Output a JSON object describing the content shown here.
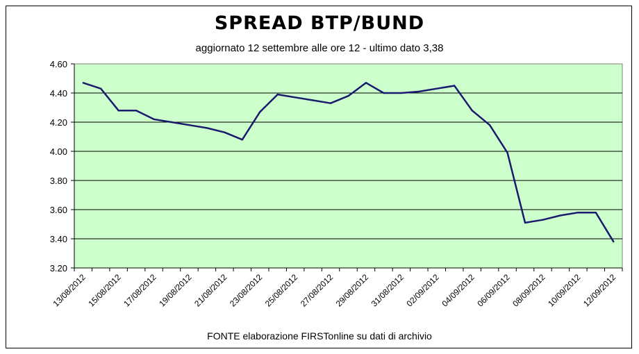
{
  "chart_data": {
    "type": "line",
    "title": "SPREAD  BTP/BUND",
    "subtitle": "aggiornato 12 settembre alle ore 12 - ultimo dato 3,38",
    "source": "FONTE elaborazione FIRSTonline su dati di archivio",
    "xlabel": "",
    "ylabel": "",
    "ylim": [
      3.2,
      4.6
    ],
    "yticks": [
      "3.20",
      "3.40",
      "3.60",
      "3.80",
      "4.00",
      "4.20",
      "4.40",
      "4.60"
    ],
    "xtick_labels": [
      "13/08/2012",
      "15/08/2012",
      "17/08/2012",
      "19/08/2012",
      "21/08/2012",
      "23/08/2012",
      "25/08/2012",
      "27/08/2012",
      "29/08/2012",
      "31/08/2012",
      "02/09/2012",
      "04/09/2012",
      "06/09/2012",
      "08/09/2012",
      "10/09/2012",
      "12/09/2012"
    ],
    "x_day_offsets_note": "data points are daily from 13/08/2012 to 12/09/2012",
    "series": [
      {
        "values": [
          4.47,
          4.43,
          4.28,
          4.28,
          4.22,
          4.2,
          4.18,
          4.16,
          4.13,
          4.08,
          4.27,
          4.39,
          4.37,
          4.35,
          4.33,
          4.38,
          4.47,
          4.4,
          4.4,
          4.41,
          4.43,
          4.45,
          4.28,
          4.18,
          3.99,
          3.51,
          3.53,
          3.56,
          3.58,
          3.58,
          3.38
        ],
        "color": "#1a1a6e"
      }
    ],
    "grid": true,
    "plot_background": "#ccffcc",
    "legend": "none"
  }
}
